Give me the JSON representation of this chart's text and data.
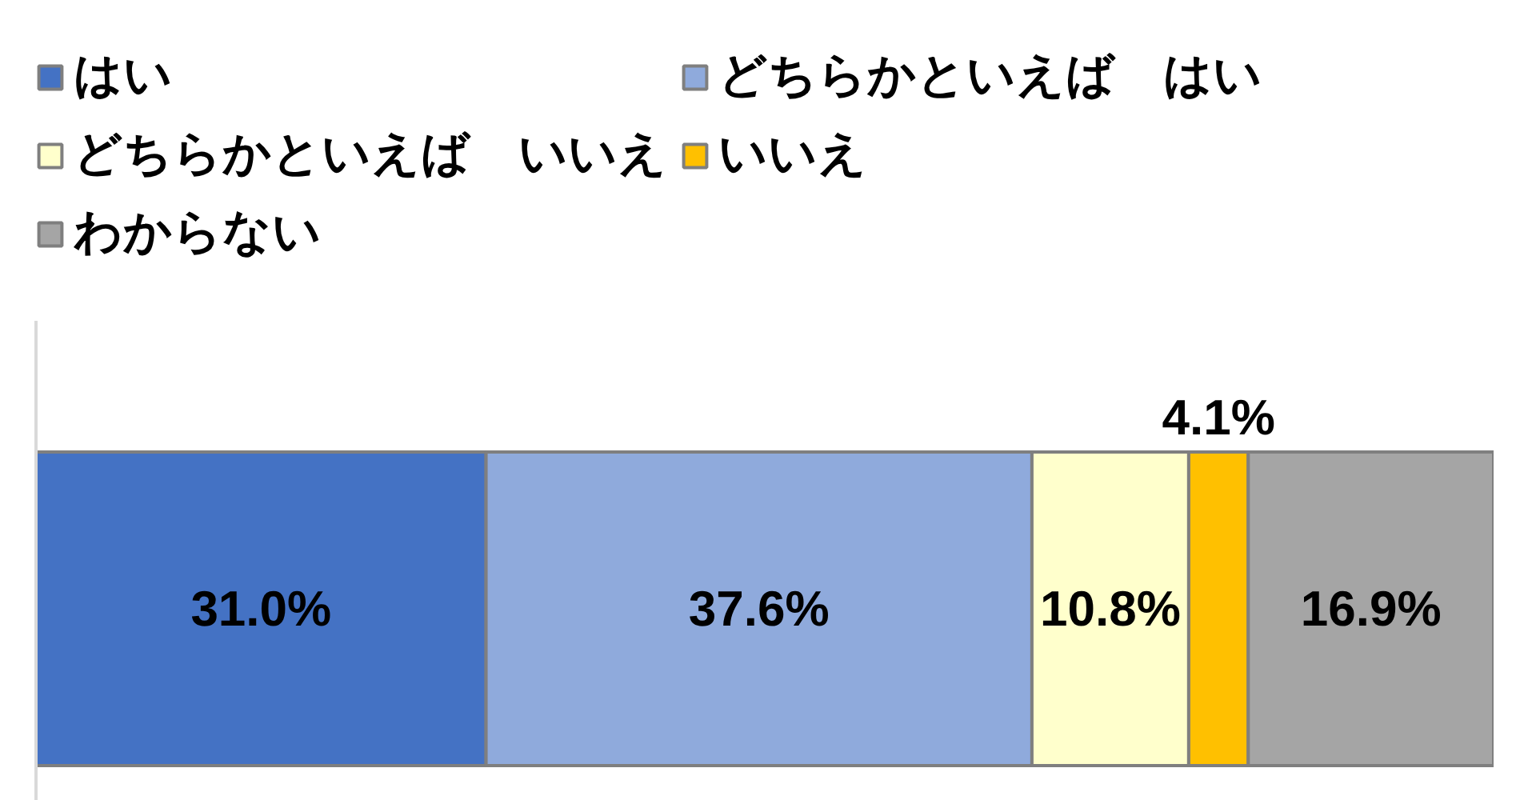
{
  "chart_data": {
    "type": "bar",
    "orientation": "horizontal",
    "stacked": true,
    "categories": [
      null
    ],
    "xlim": [
      0,
      100.4
    ],
    "series": [
      {
        "name": "はい",
        "color": "#4472c4",
        "values": [
          31.0
        ],
        "value_labels": [
          "31.0%"
        ]
      },
      {
        "name": "どちらかといえば　はい",
        "color": "#8faadc",
        "values": [
          37.6
        ],
        "value_labels": [
          "37.6%"
        ]
      },
      {
        "name": "どちらかといえば　いいえ",
        "color": "#ffffcc",
        "values": [
          10.8
        ],
        "value_labels": [
          "10.8%"
        ]
      },
      {
        "name": "いいえ",
        "color": "#ffc000",
        "values": [
          4.1
        ],
        "value_labels": [
          "4.1%"
        ]
      },
      {
        "name": "わからない",
        "color": "#a5a5a5",
        "values": [
          16.9
        ],
        "value_labels": [
          "16.9%"
        ]
      }
    ],
    "legend": "top",
    "tick_labels": false
  }
}
